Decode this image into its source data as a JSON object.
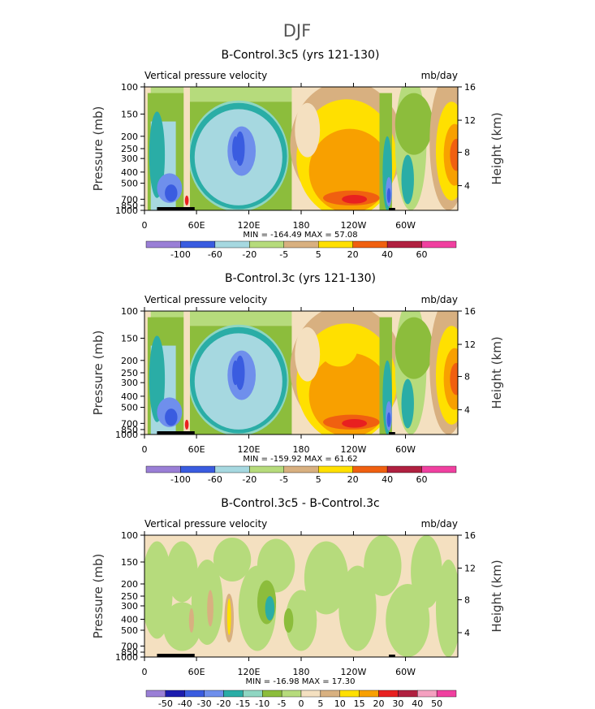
{
  "figure": {
    "main_title": "DJF"
  },
  "scale_colors": [
    "#9a7fd6",
    "#1c1cae",
    "#3a5ce0",
    "#6f8fec",
    "#a6d8e0",
    "#2aada6",
    "#8fd6c2",
    "#8cbd3c",
    "#b6db7c",
    "#f4e0c0",
    "#d8b080",
    "#ffe000",
    "#f8a000",
    "#f06010",
    "#e82020",
    "#b02040",
    "#f4a0c0",
    "#f040a0"
  ],
  "chart_data": [
    {
      "type": "heatmap",
      "title": "B-Control.3c5 (yrs 121-130)",
      "left_label": "Vertical pressure velocity",
      "units": "mb/day",
      "ylabel": "Pressure (mb)",
      "y2label": "Height (km)",
      "pressure_ticks": [
        "100",
        "150",
        "200",
        "250",
        "300",
        "400",
        "500",
        "700",
        "850",
        "1000"
      ],
      "height_ticks": [
        "16",
        "12",
        "8",
        "4"
      ],
      "lon_ticks": [
        "0",
        "60E",
        "120E",
        "180",
        "120W",
        "60W"
      ],
      "stats": "MIN = -164.49   MAX =  57.08",
      "colorbar_labels": [
        "-100",
        "-60",
        "-20",
        "-5",
        "5",
        "20",
        "40",
        "60"
      ],
      "min": -164.49,
      "max": 57.08
    },
    {
      "type": "heatmap",
      "title": "B-Control.3c (yrs 121-130)",
      "left_label": "Vertical pressure velocity",
      "units": "mb/day",
      "ylabel": "Pressure (mb)",
      "y2label": "Height (km)",
      "pressure_ticks": [
        "100",
        "150",
        "200",
        "250",
        "300",
        "400",
        "500",
        "700",
        "850",
        "1000"
      ],
      "height_ticks": [
        "16",
        "12",
        "8",
        "4"
      ],
      "lon_ticks": [
        "0",
        "60E",
        "120E",
        "180",
        "120W",
        "60W"
      ],
      "stats": "MIN = -159.92   MAX =  61.62",
      "colorbar_labels": [
        "-100",
        "-60",
        "-20",
        "-5",
        "5",
        "20",
        "40",
        "60"
      ],
      "min": -159.92,
      "max": 61.62
    },
    {
      "type": "heatmap",
      "title": "B-Control.3c5 - B-Control.3c",
      "left_label": "Vertical pressure velocity",
      "units": "mb/day",
      "ylabel": "Pressure (mb)",
      "y2label": "Height (km)",
      "pressure_ticks": [
        "100",
        "150",
        "200",
        "250",
        "300",
        "400",
        "500",
        "700",
        "850",
        "1000"
      ],
      "height_ticks": [
        "16",
        "12",
        "8",
        "4"
      ],
      "lon_ticks": [
        "0",
        "60E",
        "120E",
        "180",
        "120W",
        "60W"
      ],
      "stats": "MIN =  -16.98   MAX =  17.30",
      "colorbar_labels": [
        "-50",
        "-40",
        "-30",
        "-20",
        "-15",
        "-10",
        "-5",
        "0",
        "5",
        "10",
        "15",
        "20",
        "30",
        "40",
        "50"
      ],
      "min": -16.98,
      "max": 17.3
    }
  ]
}
